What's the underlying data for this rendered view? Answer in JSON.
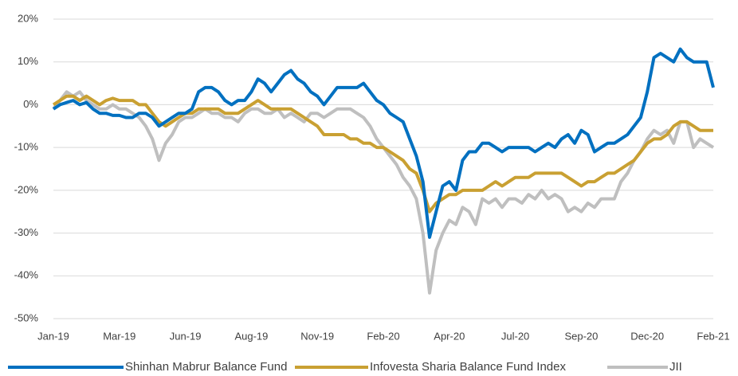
{
  "chart_data": {
    "type": "line",
    "categories": [
      "Jan-19",
      null,
      null,
      null,
      null,
      null,
      null,
      null,
      null,
      null,
      "Mar-19",
      null,
      null,
      null,
      null,
      null,
      null,
      null,
      null,
      null,
      "Jun-19",
      null,
      null,
      null,
      null,
      null,
      null,
      null,
      null,
      null,
      "Aug-19",
      null,
      null,
      null,
      null,
      null,
      null,
      null,
      null,
      null,
      "Nov-19",
      null,
      null,
      null,
      null,
      null,
      null,
      null,
      null,
      null,
      "Feb-20",
      null,
      null,
      null,
      null,
      null,
      null,
      null,
      null,
      null,
      "Apr-20",
      null,
      null,
      null,
      null,
      null,
      null,
      null,
      null,
      null,
      "Jul-20",
      null,
      null,
      null,
      null,
      null,
      null,
      null,
      null,
      null,
      "Sep-20",
      null,
      null,
      null,
      null,
      null,
      null,
      null,
      null,
      null,
      "Dec-20",
      null,
      null,
      null,
      null,
      null,
      null,
      null,
      null,
      null,
      "Feb-21"
    ],
    "series": [
      {
        "name": "Shinhan Mabrur Balance Fund",
        "color": "#0070c0",
        "values": [
          -1,
          0,
          0.5,
          1,
          0,
          0.5,
          -1,
          -2,
          -2,
          -2.5,
          -2.5,
          -3,
          -3,
          -2,
          -2,
          -3,
          -5,
          -4,
          -3,
          -2,
          -2,
          -1,
          3,
          4,
          4,
          3,
          1,
          0,
          1,
          1,
          3,
          6,
          5,
          3,
          5,
          7,
          8,
          6,
          5,
          3,
          2,
          0,
          2,
          4,
          4,
          4,
          4,
          5,
          3,
          1,
          0,
          -2,
          -3,
          -4,
          -8,
          -12,
          -18,
          -31,
          -25,
          -19,
          -18,
          -20,
          -13,
          -11,
          -11,
          -9,
          -9,
          -10,
          -11,
          -10,
          -10,
          -10,
          -10,
          -11,
          -10,
          -9,
          -10,
          -8,
          -7,
          -9,
          -6,
          -7,
          -11,
          -10,
          -9,
          -9,
          -8,
          -7,
          -5,
          -3,
          3,
          11,
          12,
          11,
          10,
          13,
          11,
          10,
          10,
          10,
          4
        ]
      },
      {
        "name": "Infovesta Sharia Balance Fund Index",
        "color": "#c9a032",
        "values": [
          0,
          1,
          2,
          2,
          1,
          2,
          1,
          0,
          1,
          1.5,
          1,
          1,
          1,
          0,
          0,
          -2,
          -4,
          -5,
          -4,
          -3,
          -2,
          -2,
          -1,
          -1,
          -1,
          -1,
          -2,
          -2,
          -2,
          -1,
          0,
          1,
          0,
          -1,
          -1,
          -1,
          -1,
          -2,
          -3,
          -4,
          -5,
          -7,
          -7,
          -7,
          -7,
          -8,
          -8,
          -9,
          -9,
          -10,
          -10,
          -11,
          -12,
          -13,
          -15,
          -16,
          -20,
          -25,
          -23,
          -22,
          -21,
          -21,
          -20,
          -20,
          -20,
          -20,
          -19,
          -18,
          -19,
          -18,
          -17,
          -17,
          -17,
          -16,
          -16,
          -16,
          -16,
          -16,
          -17,
          -18,
          -19,
          -18,
          -18,
          -17,
          -16,
          -16,
          -15,
          -14,
          -13,
          -11,
          -9,
          -8,
          -8,
          -7,
          -5,
          -4,
          -4,
          -5,
          -6,
          -6,
          -6
        ]
      },
      {
        "name": "JII",
        "color": "#bfbfbf",
        "values": [
          -1,
          1,
          3,
          2,
          3,
          1,
          0,
          -1,
          -1,
          0,
          -1,
          -1,
          -2,
          -3,
          -5,
          -8,
          -13,
          -9,
          -7,
          -4,
          -3,
          -3,
          -2,
          -1,
          -2,
          -2,
          -3,
          -3,
          -4,
          -2,
          -1,
          -1,
          -2,
          -2,
          -1,
          -3,
          -2,
          -3,
          -4,
          -2,
          -2,
          -3,
          -2,
          -1,
          -1,
          -1,
          -2,
          -3,
          -5,
          -8,
          -10,
          -12,
          -14,
          -17,
          -19,
          -22,
          -30,
          -44,
          -34,
          -30,
          -27,
          -28,
          -24,
          -25,
          -28,
          -22,
          -23,
          -22,
          -24,
          -22,
          -22,
          -23,
          -21,
          -22,
          -20,
          -22,
          -21,
          -22,
          -25,
          -24,
          -25,
          -23,
          -24,
          -22,
          -22,
          -22,
          -18,
          -16,
          -13,
          -11,
          -8,
          -6,
          -7,
          -6,
          -9,
          -4,
          -4,
          -10,
          -8,
          -9,
          -10
        ]
      }
    ],
    "ylim": [
      -50,
      20
    ],
    "yticks": [
      {
        "value": -50,
        "label": "-50%"
      },
      {
        "value": -40,
        "label": "-40%"
      },
      {
        "value": -30,
        "label": "-30%"
      },
      {
        "value": -20,
        "label": "-20%"
      },
      {
        "value": -10,
        "label": "-10%"
      },
      {
        "value": 0,
        "label": "0%"
      },
      {
        "value": 10,
        "label": "10%"
      },
      {
        "value": 20,
        "label": "20%"
      }
    ],
    "grid": true
  }
}
